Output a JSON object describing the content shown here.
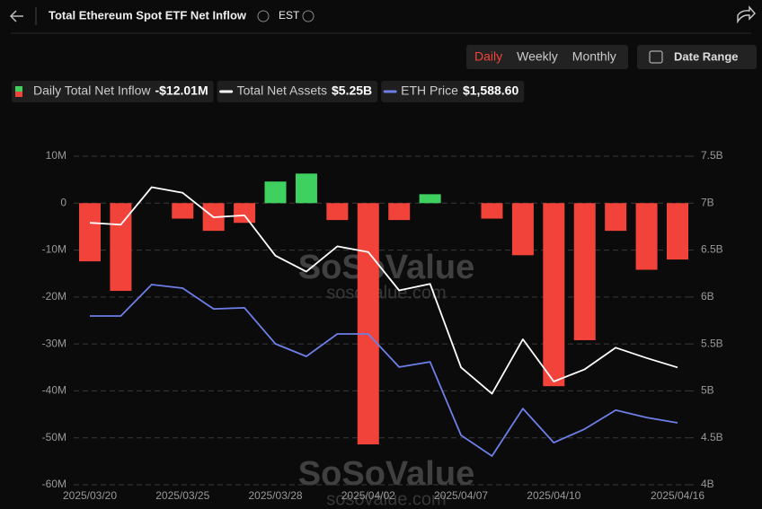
{
  "header": {
    "title": "Total Ethereum Spot ETF Net Inflow",
    "timezone": "EST",
    "periods": [
      "Daily",
      "Weekly",
      "Monthly"
    ],
    "active_period": "Daily",
    "date_range": "Date Range"
  },
  "watermark": {
    "brand": "SoSoValue",
    "site": "sosovalue.com"
  },
  "chart_data": {
    "type": "bar",
    "categories": [
      "2025/03/20",
      null,
      null,
      "2025/03/25",
      null,
      null,
      "2025/03/28",
      null,
      null,
      "2025/04/02",
      null,
      null,
      "2025/04/07",
      null,
      null,
      "2025/04/10",
      null,
      null,
      null,
      "2025/04/16"
    ],
    "series": [
      {
        "name": "Daily Total Net Inflow",
        "type": "bar",
        "color": "#3ed160",
        "negative_color": "#f2433a",
        "value_label": "-$12.01M",
        "values": [
          -12.4,
          -18.7,
          0,
          -3.3,
          -5.9,
          -4.2,
          4.6,
          6.3,
          -3.6,
          -51.4,
          -3.6,
          1.9,
          0,
          -3.3,
          -11.1,
          -39.0,
          -29.2,
          -5.9,
          -14.2,
          -12.01
        ]
      },
      {
        "name": "Total Net Assets",
        "type": "line",
        "axis": "y2",
        "color": "#ffffff",
        "value_label": "$5.25B",
        "values": [
          6.79,
          6.77,
          7.17,
          7.11,
          6.85,
          6.87,
          6.44,
          6.27,
          6.54,
          6.48,
          6.07,
          6.14,
          5.25,
          4.97,
          5.55,
          5.1,
          5.23,
          5.46,
          5.35,
          5.25
        ]
      },
      {
        "name": "ETH Price",
        "type": "line",
        "axis": "none",
        "color": "#6d7fe6",
        "value_label": "$1,588.60",
        "values": [
          1980,
          1980,
          2095,
          2082,
          2006,
          2010,
          1878,
          1832,
          1914,
          1914,
          1793,
          1812,
          1543,
          1467,
          1641,
          1516,
          1566,
          1635,
          1608,
          1588.6
        ]
      }
    ],
    "ylim": [
      -60,
      10
    ],
    "yticks": [
      {
        "value": 10,
        "label": "10M"
      },
      0,
      {
        "value": -10,
        "label": "-10M"
      },
      {
        "value": -20,
        "label": "-20M"
      },
      {
        "value": -30,
        "label": "-30M"
      },
      {
        "value": -40,
        "label": "-40M"
      },
      {
        "value": -50,
        "label": "-50M"
      },
      {
        "value": -60,
        "label": "-60M"
      }
    ],
    "y2lim": [
      4,
      7.5
    ],
    "y2ticks": [
      {
        "value": 7.5,
        "label": "7.5B"
      },
      {
        "value": 7,
        "label": "7B"
      },
      {
        "value": 6.5,
        "label": "6.5B"
      },
      {
        "value": 6,
        "label": "6B"
      },
      {
        "value": 5.5,
        "label": "5.5B"
      },
      {
        "value": 5,
        "label": "5B"
      },
      {
        "value": 4.5,
        "label": "4.5B"
      },
      {
        "value": 4,
        "label": "4B"
      }
    ],
    "grid": true
  }
}
